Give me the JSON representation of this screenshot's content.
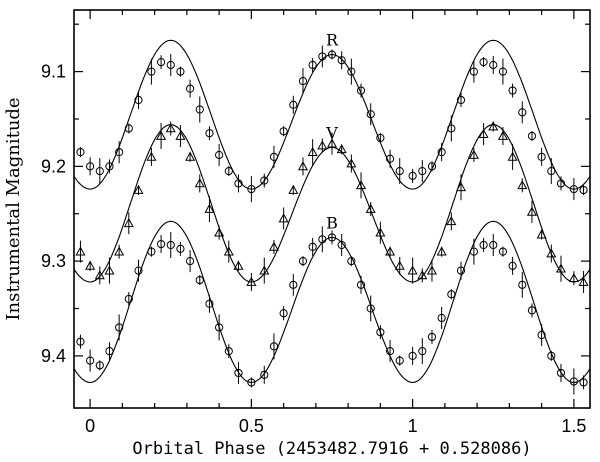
{
  "chart_data": {
    "type": "scatter",
    "title": "",
    "xlabel": "Orbital Phase (2453482.7916 + 0.528086)",
    "ylabel": "Instrumental Magnitude",
    "xlim": [
      -0.05,
      1.55
    ],
    "ylim": [
      9.035,
      9.455
    ],
    "y_inverted": true,
    "grid": false,
    "legend": "none",
    "x_ticks": [
      {
        "v": 0,
        "label": "0"
      },
      {
        "v": 0.5,
        "label": "0.5"
      },
      {
        "v": 1,
        "label": "1"
      },
      {
        "v": 1.5,
        "label": "1.5"
      }
    ],
    "y_ticks": [
      {
        "v": 9.1,
        "label": "9.1"
      },
      {
        "v": 9.2,
        "label": "9.2"
      },
      {
        "v": 9.3,
        "label": "9.3"
      },
      {
        "v": 9.4,
        "label": "9.4"
      }
    ],
    "series": [
      {
        "name": "R",
        "marker": "circle",
        "model_curve": {
          "base": 9.224,
          "max1_depth": 0.157,
          "max2_depth": 0.142
        },
        "points": [
          [
            -0.03,
            9.185
          ],
          [
            0.0,
            9.2
          ],
          [
            0.03,
            9.205
          ],
          [
            0.06,
            9.2
          ],
          [
            0.09,
            9.185
          ],
          [
            0.12,
            9.16
          ],
          [
            0.15,
            9.13
          ],
          [
            0.19,
            9.1
          ],
          [
            0.22,
            9.09
          ],
          [
            0.25,
            9.093
          ],
          [
            0.28,
            9.1
          ],
          [
            0.31,
            9.118
          ],
          [
            0.34,
            9.14
          ],
          [
            0.37,
            9.165
          ],
          [
            0.4,
            9.188
          ],
          [
            0.43,
            9.205
          ],
          [
            0.46,
            9.218
          ],
          [
            0.5,
            9.224
          ],
          [
            0.54,
            9.215
          ],
          [
            0.57,
            9.19
          ],
          [
            0.6,
            9.163
          ],
          [
            0.63,
            9.135
          ],
          [
            0.66,
            9.11
          ],
          [
            0.69,
            9.093
          ],
          [
            0.72,
            9.084
          ],
          [
            0.75,
            9.082
          ],
          [
            0.78,
            9.088
          ],
          [
            0.81,
            9.1
          ],
          [
            0.84,
            9.12
          ],
          [
            0.87,
            9.145
          ],
          [
            0.9,
            9.17
          ],
          [
            0.93,
            9.192
          ],
          [
            0.96,
            9.205
          ],
          [
            1.0,
            9.21
          ],
          [
            1.03,
            9.205
          ],
          [
            1.06,
            9.2
          ],
          [
            1.09,
            9.185
          ],
          [
            1.12,
            9.16
          ],
          [
            1.15,
            9.13
          ],
          [
            1.19,
            9.1
          ],
          [
            1.22,
            9.09
          ],
          [
            1.25,
            9.093
          ],
          [
            1.28,
            9.1
          ],
          [
            1.31,
            9.12
          ],
          [
            1.34,
            9.143
          ],
          [
            1.37,
            9.168
          ],
          [
            1.4,
            9.19
          ],
          [
            1.43,
            9.205
          ],
          [
            1.46,
            9.218
          ],
          [
            1.5,
            9.224
          ],
          [
            1.53,
            9.225
          ]
        ]
      },
      {
        "name": "V",
        "marker": "triangle",
        "model_curve": {
          "base": 9.322,
          "max1_depth": 0.166,
          "max2_depth": 0.142
        },
        "points": [
          [
            -0.03,
            9.29
          ],
          [
            0.0,
            9.305
          ],
          [
            0.03,
            9.315
          ],
          [
            0.06,
            9.31
          ],
          [
            0.09,
            9.29
          ],
          [
            0.12,
            9.26
          ],
          [
            0.15,
            9.225
          ],
          [
            0.19,
            9.19
          ],
          [
            0.22,
            9.168
          ],
          [
            0.25,
            9.16
          ],
          [
            0.28,
            9.168
          ],
          [
            0.31,
            9.19
          ],
          [
            0.34,
            9.218
          ],
          [
            0.37,
            9.245
          ],
          [
            0.4,
            9.27
          ],
          [
            0.43,
            9.29
          ],
          [
            0.46,
            9.305
          ],
          [
            0.5,
            9.322
          ],
          [
            0.54,
            9.31
          ],
          [
            0.57,
            9.285
          ],
          [
            0.6,
            9.255
          ],
          [
            0.63,
            9.225
          ],
          [
            0.66,
            9.2
          ],
          [
            0.69,
            9.185
          ],
          [
            0.72,
            9.178
          ],
          [
            0.75,
            9.176
          ],
          [
            0.78,
            9.182
          ],
          [
            0.81,
            9.197
          ],
          [
            0.84,
            9.22
          ],
          [
            0.87,
            9.245
          ],
          [
            0.9,
            9.27
          ],
          [
            0.93,
            9.29
          ],
          [
            0.96,
            9.305
          ],
          [
            1.0,
            9.31
          ],
          [
            1.03,
            9.315
          ],
          [
            1.06,
            9.31
          ],
          [
            1.09,
            9.29
          ],
          [
            1.12,
            9.258
          ],
          [
            1.15,
            9.222
          ],
          [
            1.19,
            9.188
          ],
          [
            1.22,
            9.166
          ],
          [
            1.25,
            9.158
          ],
          [
            1.28,
            9.168
          ],
          [
            1.31,
            9.19
          ],
          [
            1.34,
            9.22
          ],
          [
            1.37,
            9.248
          ],
          [
            1.4,
            9.272
          ],
          [
            1.43,
            9.292
          ],
          [
            1.46,
            9.308
          ],
          [
            1.5,
            9.318
          ],
          [
            1.53,
            9.322
          ]
        ]
      },
      {
        "name": "B",
        "marker": "circle",
        "model_curve": {
          "base": 9.428,
          "max1_depth": 0.17,
          "max2_depth": 0.153
        },
        "points": [
          [
            -0.03,
            9.385
          ],
          [
            0.0,
            9.405
          ],
          [
            0.03,
            9.41
          ],
          [
            0.06,
            9.395
          ],
          [
            0.09,
            9.37
          ],
          [
            0.12,
            9.34
          ],
          [
            0.15,
            9.31
          ],
          [
            0.19,
            9.29
          ],
          [
            0.22,
            9.282
          ],
          [
            0.25,
            9.283
          ],
          [
            0.28,
            9.287
          ],
          [
            0.31,
            9.3
          ],
          [
            0.34,
            9.32
          ],
          [
            0.37,
            9.345
          ],
          [
            0.4,
            9.37
          ],
          [
            0.43,
            9.395
          ],
          [
            0.46,
            9.418
          ],
          [
            0.5,
            9.428
          ],
          [
            0.54,
            9.42
          ],
          [
            0.57,
            9.39
          ],
          [
            0.6,
            9.355
          ],
          [
            0.63,
            9.325
          ],
          [
            0.66,
            9.3
          ],
          [
            0.69,
            9.285
          ],
          [
            0.72,
            9.277
          ],
          [
            0.75,
            9.275
          ],
          [
            0.78,
            9.283
          ],
          [
            0.81,
            9.3
          ],
          [
            0.84,
            9.325
          ],
          [
            0.87,
            9.35
          ],
          [
            0.9,
            9.375
          ],
          [
            0.93,
            9.395
          ],
          [
            0.96,
            9.405
          ],
          [
            1.0,
            9.4
          ],
          [
            1.03,
            9.395
          ],
          [
            1.06,
            9.38
          ],
          [
            1.09,
            9.36
          ],
          [
            1.12,
            9.335
          ],
          [
            1.15,
            9.31
          ],
          [
            1.19,
            9.29
          ],
          [
            1.22,
            9.283
          ],
          [
            1.25,
            9.283
          ],
          [
            1.28,
            9.29
          ],
          [
            1.31,
            9.305
          ],
          [
            1.34,
            9.325
          ],
          [
            1.37,
            9.352
          ],
          [
            1.4,
            9.378
          ],
          [
            1.43,
            9.4
          ],
          [
            1.46,
            9.418
          ],
          [
            1.5,
            9.427
          ],
          [
            1.53,
            9.428
          ]
        ]
      }
    ]
  }
}
